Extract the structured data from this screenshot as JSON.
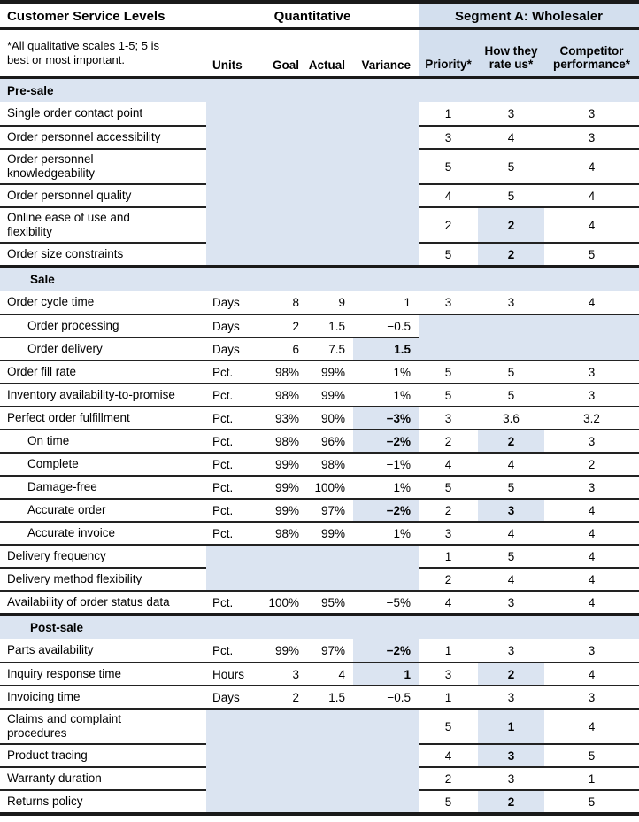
{
  "table": {
    "title": "Customer Service Levels",
    "group_headers": {
      "quantitative": "Quantitative",
      "segment": "Segment A: Wholesaler"
    },
    "note": "*All qualitative scales 1-5; 5 is\nbest or most important.",
    "columns": {
      "units": "Units",
      "goal": "Goal",
      "actual": "Actual",
      "variance": "Variance",
      "priority": "Priority*",
      "rate": "How they\nrate us*",
      "competitor": "Competitor\nperformance*"
    },
    "colors": {
      "fill": "#dbe4f1",
      "band": "#d3dfee",
      "rule": "#1a1a1a"
    },
    "rows": [
      {
        "type": "section",
        "label": "Pre-sale",
        "indent": false
      },
      {
        "type": "data",
        "name": "Single order contact point",
        "quant_shaded": true,
        "priority": "1",
        "rate": "3",
        "competitor": "3"
      },
      {
        "type": "data",
        "name": "Order personnel accessibility",
        "quant_shaded": true,
        "priority": "3",
        "rate": "4",
        "competitor": "3"
      },
      {
        "type": "data",
        "name": "Order personnel\nknowledgeability",
        "quant_shaded": true,
        "priority": "5",
        "rate": "5",
        "competitor": "4"
      },
      {
        "type": "data",
        "name": "Order personnel quality",
        "quant_shaded": true,
        "priority": "4",
        "rate": "5",
        "competitor": "4"
      },
      {
        "type": "data",
        "name": "Online ease of use and\nflexibility",
        "quant_shaded": true,
        "priority": "2",
        "rate": "2",
        "rate_hl": true,
        "competitor": "4"
      },
      {
        "type": "data",
        "name": "Order size constraints",
        "quant_shaded": true,
        "priority": "5",
        "rate": "2",
        "rate_hl": true,
        "competitor": "5"
      },
      {
        "type": "section",
        "label": "Sale",
        "indent": true
      },
      {
        "type": "data",
        "name": "Order cycle time",
        "units": "Days",
        "goal": "8",
        "actual": "9",
        "variance": "1",
        "priority": "3",
        "rate": "3",
        "competitor": "4"
      },
      {
        "type": "data",
        "name": "Order processing",
        "indent": true,
        "units": "Days",
        "goal": "2",
        "actual": "1.5",
        "variance": "−0.5",
        "seg_shaded": true
      },
      {
        "type": "data",
        "name": "Order delivery",
        "indent": true,
        "units": "Days",
        "goal": "6",
        "actual": "7.5",
        "variance": "1.5",
        "variance_hl": true,
        "seg_shaded": true
      },
      {
        "type": "data",
        "name": "Order fill rate",
        "units": "Pct.",
        "goal": "98%",
        "actual": "99%",
        "variance": "1%",
        "priority": "5",
        "rate": "5",
        "competitor": "3"
      },
      {
        "type": "data",
        "name": "Inventory availability-to-promise",
        "units": "Pct.",
        "goal": "98%",
        "actual": "99%",
        "variance": "1%",
        "priority": "5",
        "rate": "5",
        "competitor": "3"
      },
      {
        "type": "data",
        "name": "Perfect order fulfillment",
        "units": "Pct.",
        "goal": "93%",
        "actual": "90%",
        "variance": "−3%",
        "variance_hl": true,
        "priority": "3",
        "rate": "3.6",
        "competitor": "3.2"
      },
      {
        "type": "data",
        "name": "On time",
        "indent": true,
        "units": "Pct.",
        "goal": "98%",
        "actual": "96%",
        "variance": "−2%",
        "variance_hl": true,
        "priority": "2",
        "rate": "2",
        "rate_hl": true,
        "competitor": "3"
      },
      {
        "type": "data",
        "name": "Complete",
        "indent": true,
        "units": "Pct.",
        "goal": "99%",
        "actual": "98%",
        "variance": "−1%",
        "priority": "4",
        "rate": "4",
        "competitor": "2"
      },
      {
        "type": "data",
        "name": "Damage-free",
        "indent": true,
        "units": "Pct.",
        "goal": "99%",
        "actual": "100%",
        "variance": "1%",
        "priority": "5",
        "rate": "5",
        "competitor": "3"
      },
      {
        "type": "data",
        "name": "Accurate order",
        "indent": true,
        "units": "Pct.",
        "goal": "99%",
        "actual": "97%",
        "variance": "−2%",
        "variance_hl": true,
        "priority": "2",
        "rate": "3",
        "rate_hl": true,
        "competitor": "4"
      },
      {
        "type": "data",
        "name": "Accurate invoice",
        "indent": true,
        "units": "Pct.",
        "goal": "98%",
        "actual": "99%",
        "variance": "1%",
        "priority": "3",
        "rate": "4",
        "competitor": "4"
      },
      {
        "type": "data",
        "name": "Delivery frequency",
        "quant_shaded": true,
        "priority": "1",
        "rate": "5",
        "competitor": "4"
      },
      {
        "type": "data",
        "name": "Delivery method flexibility",
        "quant_shaded": true,
        "priority": "2",
        "rate": "4",
        "competitor": "4"
      },
      {
        "type": "data",
        "name": "Availability of order status data",
        "units": "Pct.",
        "goal": "100%",
        "actual": "95%",
        "variance": "−5%",
        "priority": "4",
        "rate": "3",
        "competitor": "4"
      },
      {
        "type": "section",
        "label": "Post-sale",
        "indent": true
      },
      {
        "type": "data",
        "name": "Parts availability",
        "units": "Pct.",
        "goal": "99%",
        "actual": "97%",
        "variance": "−2%",
        "variance_hl": true,
        "priority": "1",
        "rate": "3",
        "competitor": "3"
      },
      {
        "type": "data",
        "name": "Inquiry response time",
        "units": "Hours",
        "goal": "3",
        "actual": "4",
        "variance": "1",
        "variance_hl": true,
        "priority": "3",
        "rate": "2",
        "rate_hl": true,
        "competitor": "4"
      },
      {
        "type": "data",
        "name": "Invoicing time",
        "units": "Days",
        "goal": "2",
        "actual": "1.5",
        "variance": "−0.5",
        "priority": "1",
        "rate": "3",
        "competitor": "3"
      },
      {
        "type": "data",
        "name": "Claims and complaint\nprocedures",
        "quant_shaded": true,
        "priority": "5",
        "rate": "1",
        "rate_hl": true,
        "competitor": "4"
      },
      {
        "type": "data",
        "name": "Product tracing",
        "quant_shaded": true,
        "priority": "4",
        "rate": "3",
        "rate_hl": true,
        "competitor": "5"
      },
      {
        "type": "data",
        "name": "Warranty duration",
        "quant_shaded": true,
        "priority": "2",
        "rate": "3",
        "competitor": "1"
      },
      {
        "type": "data",
        "name": "Returns policy",
        "quant_shaded": true,
        "priority": "5",
        "rate": "2",
        "rate_hl": true,
        "competitor": "5"
      }
    ]
  }
}
